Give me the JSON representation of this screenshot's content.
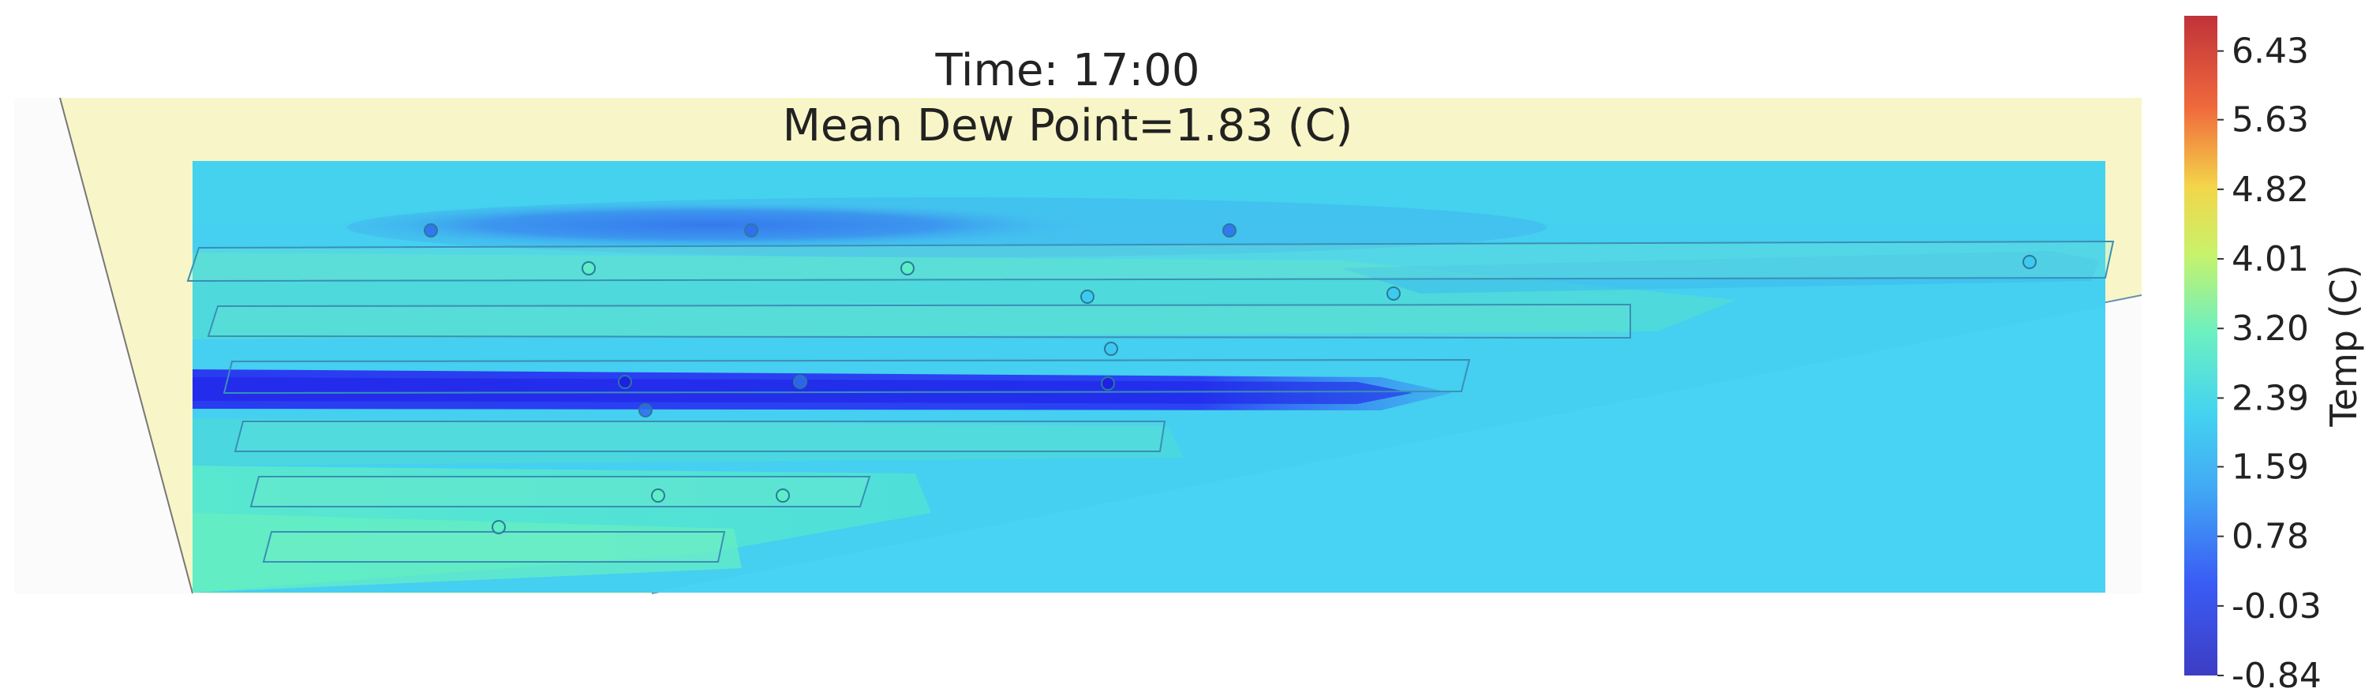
{
  "chart_data": {
    "type": "heatmap",
    "title": "Time: 17:00",
    "subtitle": "Mean Dew Point=1.83 (C)",
    "colorbar": {
      "label": "Temp (C)",
      "min": -0.84,
      "max": 6.84,
      "ticks": [
        6.43,
        5.63,
        4.82,
        4.01,
        3.2,
        2.39,
        1.59,
        0.78,
        -0.03,
        -0.84
      ],
      "tick_labels": [
        "6.43",
        "5.63",
        "4.82",
        "4.01",
        "3.20",
        "2.39",
        "1.59",
        "0.78",
        "-0.03",
        "-0.84"
      ]
    },
    "field": {
      "background_value": 1.4,
      "bands": [
        {
          "name": "row-1",
          "value": 1.7
        },
        {
          "name": "row-2",
          "value": 2.2
        },
        {
          "name": "row-3",
          "value": 0.2
        },
        {
          "name": "row-4",
          "value": 2.1
        },
        {
          "name": "row-5",
          "value": 2.4
        },
        {
          "name": "row-6",
          "value": 2.5
        }
      ]
    },
    "sensors": [
      {
        "value": 0.9
      },
      {
        "value": 0.4
      },
      {
        "value": 0.8
      },
      {
        "value": 1.4
      },
      {
        "value": 2.3
      },
      {
        "value": 2.2
      },
      {
        "value": 1.9
      },
      {
        "value": 1.1
      },
      {
        "value": 1.7
      },
      {
        "value": 0.1
      },
      {
        "value": 0.2
      },
      {
        "value": 0.1
      },
      {
        "value": 0.9
      },
      {
        "value": 2.2
      },
      {
        "value": 2.1
      },
      {
        "value": 2.4
      }
    ],
    "colors": {
      "floor_fill": "#f8f6c8",
      "colormap": [
        "#1d1de0",
        "#2f6cf0",
        "#3cc7f2",
        "#5ef0c4",
        "#d8f56a",
        "#f8c93a",
        "#f46b3c",
        "#c8202c"
      ]
    }
  }
}
